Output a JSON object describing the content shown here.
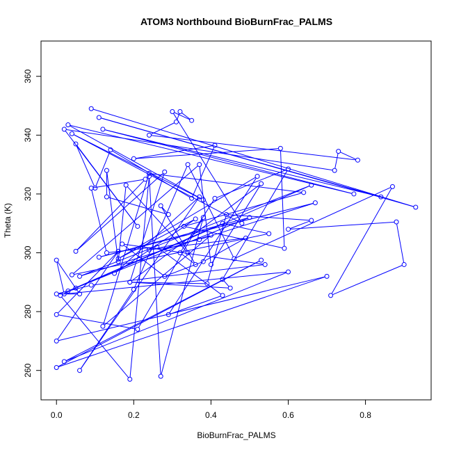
{
  "chart_data": {
    "type": "line",
    "title": "ATOM3 Northbound BioBurnFrac_PALMS",
    "xlabel": "BioBurnFrac_PALMS",
    "ylabel": "Theta (K)",
    "xlim": [
      -0.04,
      0.97
    ],
    "ylim": [
      250,
      372
    ],
    "xticks": [
      "0.0",
      "0.2",
      "0.4",
      "0.6",
      "0.8"
    ],
    "xtick_values": [
      0,
      0.2,
      0.4,
      0.6,
      0.8
    ],
    "yticks": [
      "260",
      "280",
      "300",
      "320",
      "340",
      "360"
    ],
    "ytick_values": [
      260,
      280,
      300,
      320,
      340,
      360
    ],
    "grid": false,
    "legend": "none",
    "series": [
      {
        "color": "#0000ff",
        "marker": "open-circle",
        "points": [
          [
            0.09,
            349
          ],
          [
            0.93,
            315.5
          ],
          [
            0.11,
            346
          ],
          [
            0.84,
            319
          ],
          [
            0.12,
            342
          ],
          [
            0.77,
            320
          ],
          [
            0.03,
            343.5
          ],
          [
            0.38,
            318
          ],
          [
            0.04,
            340.5
          ],
          [
            0.48,
            310
          ],
          [
            0.3,
            348
          ],
          [
            0.35,
            345
          ],
          [
            0.32,
            348
          ],
          [
            0.31,
            344.5
          ],
          [
            0.24,
            340
          ],
          [
            0.78,
            331.5
          ],
          [
            0.73,
            334.5
          ],
          [
            0.72,
            328
          ],
          [
            0.02,
            342
          ],
          [
            0.21,
            309
          ],
          [
            0.05,
            337
          ],
          [
            0.1,
            322
          ],
          [
            0.14,
            335
          ],
          [
            0.35,
            318.5
          ],
          [
            0.41,
            336.5
          ],
          [
            0.2,
            332
          ],
          [
            0.58,
            335.5
          ],
          [
            0.59,
            301.5
          ],
          [
            0.33,
            309
          ],
          [
            0.64,
            320.5
          ],
          [
            0.24,
            327
          ],
          [
            0.12,
            275
          ],
          [
            0.4,
            306
          ],
          [
            0.06,
            292
          ],
          [
            0.66,
            323
          ],
          [
            0.05,
            288
          ],
          [
            0.01,
            285.5
          ],
          [
            0.19,
            257
          ],
          [
            0.24,
            326
          ],
          [
            0.27,
            258
          ],
          [
            0.38,
            312
          ],
          [
            0.21,
            274
          ],
          [
            0.0,
            279
          ],
          [
            0.16,
            300.5
          ],
          [
            0.0,
            270
          ],
          [
            0.7,
            292
          ],
          [
            0.0,
            261
          ],
          [
            0.53,
            297.5
          ],
          [
            0.02,
            263
          ],
          [
            0.6,
            293.5
          ],
          [
            0.02,
            286
          ],
          [
            0.0,
            297.5
          ],
          [
            0.06,
            286
          ],
          [
            0.0,
            286
          ],
          [
            0.09,
            289
          ],
          [
            0.54,
            296
          ],
          [
            0.17,
            303
          ],
          [
            0.28,
            292
          ],
          [
            0.38,
            297
          ],
          [
            0.49,
            305
          ],
          [
            0.24,
            301
          ],
          [
            0.37,
            304.5
          ],
          [
            0.67,
            317
          ],
          [
            0.11,
            298.5
          ],
          [
            0.5,
            312
          ],
          [
            0.03,
            287
          ],
          [
            0.43,
            310
          ],
          [
            0.55,
            306.5
          ],
          [
            0.04,
            292.5
          ],
          [
            0.37,
            330
          ],
          [
            0.4,
            296
          ],
          [
            0.53,
            323.5
          ],
          [
            0.19,
            290
          ],
          [
            0.39,
            289.5
          ],
          [
            0.44,
            313
          ],
          [
            0.66,
            311
          ],
          [
            0.6,
            308
          ],
          [
            0.88,
            310.5
          ],
          [
            0.9,
            296
          ],
          [
            0.71,
            285.5
          ],
          [
            0.87,
            322.5
          ],
          [
            0.46,
            298
          ],
          [
            0.34,
            330
          ],
          [
            0.2,
            287.5
          ],
          [
            0.06,
            260
          ],
          [
            0.37,
            319
          ],
          [
            0.15,
            293
          ],
          [
            0.36,
            311.5
          ],
          [
            0.16,
            298
          ],
          [
            0.52,
            326
          ],
          [
            0.29,
            279
          ],
          [
            0.43,
            285.5
          ],
          [
            0.26,
            302
          ],
          [
            0.13,
            300
          ],
          [
            0.09,
            322
          ],
          [
            0.23,
            325
          ],
          [
            0.05,
            300.5
          ],
          [
            0.28,
            327.5
          ],
          [
            0.19,
            290
          ],
          [
            0.45,
            288
          ],
          [
            0.43,
            291
          ],
          [
            0.6,
            328.5
          ],
          [
            0.41,
            318.5
          ],
          [
            0.32,
            300
          ],
          [
            0.36,
            296
          ],
          [
            0.27,
            316
          ],
          [
            0.29,
            313
          ],
          [
            0.13,
            319
          ],
          [
            0.13,
            328
          ],
          [
            0.16,
            297
          ],
          [
            0.18,
            323
          ],
          [
            0.34,
            300
          ]
        ]
      }
    ]
  }
}
